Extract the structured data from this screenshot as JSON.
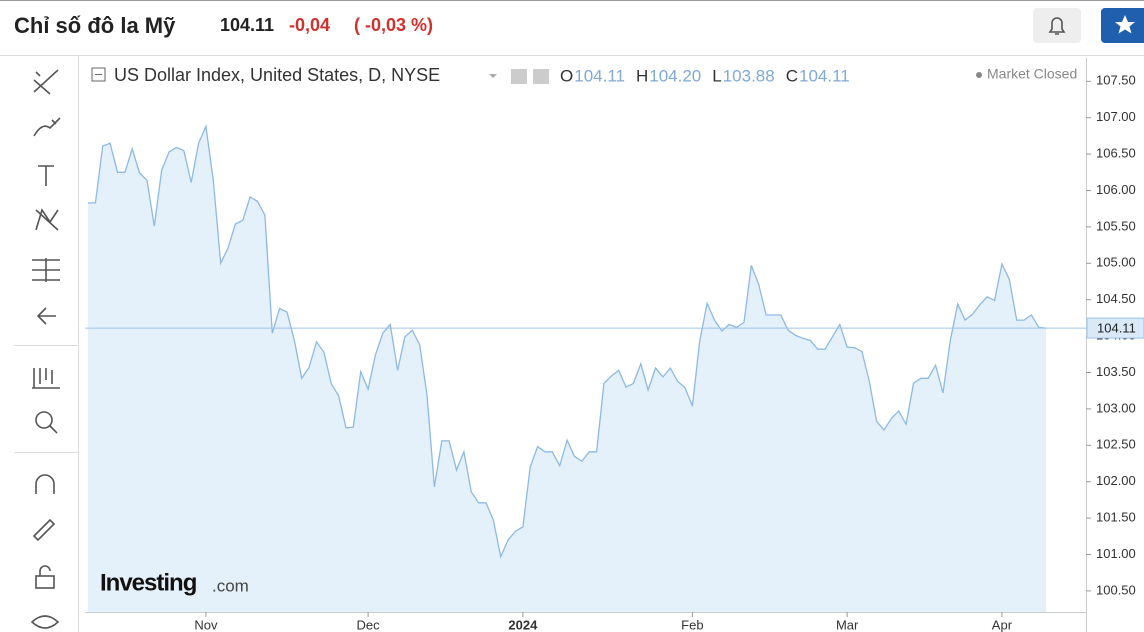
{
  "header": {
    "title": "Chỉ số đô la Mỹ",
    "price": "104.11",
    "change": "-0,04",
    "change_pct": "( -0,03 %)"
  },
  "chart_data": {
    "type": "area",
    "title": "US Dollar Index, United States, D, NYSE",
    "ohlc": [
      {
        "label": "O",
        "value": "104.11"
      },
      {
        "label": "H",
        "value": "104.20"
      },
      {
        "label": "L",
        "value": "103.88"
      },
      {
        "label": "C",
        "value": "104.11"
      }
    ],
    "status": "Market Closed",
    "brand": "Investing",
    "brand_suffix": ".com",
    "values": [
      105.83,
      105.83,
      106.61,
      106.65,
      106.25,
      106.25,
      106.57,
      106.24,
      106.14,
      105.51,
      106.28,
      106.53,
      106.59,
      106.55,
      106.11,
      106.65,
      106.88,
      106.14,
      105.0,
      105.21,
      105.54,
      105.59,
      105.91,
      105.85,
      105.66,
      104.04,
      104.38,
      104.33,
      103.94,
      103.42,
      103.57,
      103.92,
      103.78,
      103.35,
      103.18,
      102.74,
      102.75,
      103.51,
      103.27,
      103.74,
      104.04,
      104.16,
      103.53,
      103.99,
      104.08,
      103.88,
      103.19,
      101.93,
      102.56,
      102.56,
      102.16,
      102.41,
      101.86,
      101.71,
      101.71,
      101.47,
      100.97,
      101.2,
      101.32,
      101.38,
      102.2,
      102.48,
      102.41,
      102.41,
      102.22,
      102.57,
      102.35,
      102.28,
      102.41,
      102.41,
      103.35,
      103.45,
      103.53,
      103.3,
      103.35,
      103.62,
      103.26,
      103.56,
      103.44,
      103.56,
      103.38,
      103.29,
      103.04,
      103.93,
      104.45,
      104.22,
      104.07,
      104.16,
      104.12,
      104.19,
      104.97,
      104.71,
      104.29,
      104.29,
      104.29,
      104.08,
      104.01,
      103.97,
      103.94,
      103.82,
      103.82,
      103.99,
      104.16,
      103.85,
      103.84,
      103.79,
      103.38,
      102.83,
      102.71,
      102.87,
      102.97,
      102.79,
      103.35,
      103.42,
      103.42,
      103.6,
      103.22,
      103.94,
      104.44,
      104.22,
      104.3,
      104.43,
      104.54,
      104.49,
      104.99,
      104.78,
      104.22,
      104.22,
      104.29,
      104.12,
      104.11
    ],
    "last_value": 104.11,
    "color": "#8db9e4",
    "fill": "#e4f0fa",
    "xlim": [
      0,
      135
    ],
    "xticks": [
      {
        "value": 16,
        "label": "Nov"
      },
      {
        "value": 38,
        "label": "Dec"
      },
      {
        "value": 59,
        "label": "2024"
      },
      {
        "value": 82,
        "label": "Feb"
      },
      {
        "value": 103,
        "label": "Mar"
      },
      {
        "value": 124,
        "label": "Apr"
      }
    ],
    "ylim": [
      100.21,
      107.82
    ],
    "yticks": [
      {
        "value": 100.5,
        "label": "100.50"
      },
      {
        "value": 101,
        "label": "101.00"
      },
      {
        "value": 101.5,
        "label": "101.50"
      },
      {
        "value": 102,
        "label": "102.00"
      },
      {
        "value": 102.5,
        "label": "102.50"
      },
      {
        "value": 103,
        "label": "103.00"
      },
      {
        "value": 103.5,
        "label": "103.50"
      },
      {
        "value": 104,
        "label": "104.00"
      },
      {
        "value": 104.5,
        "label": "104.50"
      },
      {
        "value": 105,
        "label": "105.00"
      },
      {
        "value": 105.5,
        "label": "105.50"
      },
      {
        "value": 106,
        "label": "106.00"
      },
      {
        "value": 106.5,
        "label": "106.50"
      },
      {
        "value": 107,
        "label": "107.00"
      },
      {
        "value": 107.5,
        "label": "107.50"
      }
    ]
  }
}
